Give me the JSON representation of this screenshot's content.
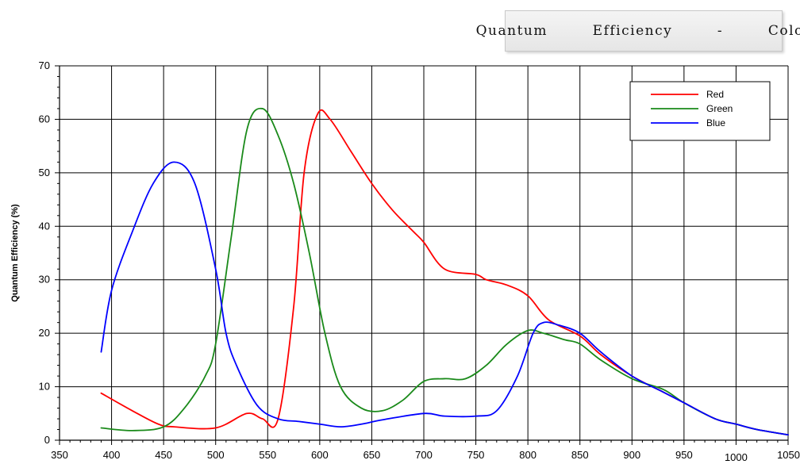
{
  "title_box": {
    "text": "Quantum   Efficiency   -   Color"
  },
  "chart_data": {
    "type": "line",
    "title": "Quantum   Efficiency   -   Color",
    "xlabel": "",
    "ylabel": "Quantum Efficiency (%)",
    "xlim": [
      350,
      1050
    ],
    "ylim": [
      0,
      70
    ],
    "x_ticks": [
      350,
      400,
      450,
      500,
      550,
      600,
      650,
      700,
      750,
      800,
      850,
      900,
      950,
      1000,
      1050
    ],
    "y_ticks": [
      0,
      10,
      20,
      30,
      40,
      50,
      60,
      70
    ],
    "grid": true,
    "legend_position": "top-right",
    "series": [
      {
        "name": "Red",
        "color": "#ff0000",
        "points": [
          [
            390,
            8.8
          ],
          [
            420,
            5.5
          ],
          [
            445,
            3.0
          ],
          [
            460,
            2.5
          ],
          [
            500,
            2.3
          ],
          [
            530,
            5.0
          ],
          [
            545,
            4.0
          ],
          [
            560,
            4.0
          ],
          [
            575,
            25.0
          ],
          [
            585,
            50.0
          ],
          [
            598,
            61.0
          ],
          [
            610,
            60.0
          ],
          [
            630,
            54.0
          ],
          [
            650,
            48.0
          ],
          [
            670,
            43.0
          ],
          [
            690,
            39.0
          ],
          [
            700,
            37.0
          ],
          [
            720,
            32.0
          ],
          [
            750,
            31.0
          ],
          [
            760,
            30.0
          ],
          [
            780,
            29.0
          ],
          [
            800,
            27.0
          ],
          [
            820,
            22.5
          ],
          [
            850,
            19.5
          ],
          [
            870,
            16.0
          ],
          [
            900,
            12.0
          ],
          [
            930,
            9.0
          ],
          [
            950,
            7.0
          ],
          [
            980,
            4.0
          ],
          [
            1000,
            3.0
          ],
          [
            1020,
            2.0
          ],
          [
            1050,
            1.0
          ]
        ]
      },
      {
        "name": "Green",
        "color": "#1a8a1a",
        "points": [
          [
            390,
            2.3
          ],
          [
            420,
            1.8
          ],
          [
            450,
            2.5
          ],
          [
            470,
            6.0
          ],
          [
            490,
            12.0
          ],
          [
            500,
            18.0
          ],
          [
            515,
            38.0
          ],
          [
            530,
            58.0
          ],
          [
            545,
            62.0
          ],
          [
            560,
            57.0
          ],
          [
            575,
            48.0
          ],
          [
            590,
            35.0
          ],
          [
            605,
            20.0
          ],
          [
            620,
            10.0
          ],
          [
            640,
            6.0
          ],
          [
            660,
            5.5
          ],
          [
            680,
            7.5
          ],
          [
            700,
            11.0
          ],
          [
            720,
            11.5
          ],
          [
            740,
            11.5
          ],
          [
            760,
            14.0
          ],
          [
            780,
            18.0
          ],
          [
            800,
            20.5
          ],
          [
            815,
            20.0
          ],
          [
            835,
            18.8
          ],
          [
            850,
            18.0
          ],
          [
            870,
            15.0
          ],
          [
            900,
            11.5
          ],
          [
            930,
            9.5
          ],
          [
            950,
            7.0
          ],
          [
            980,
            4.0
          ],
          [
            1000,
            3.0
          ],
          [
            1020,
            2.0
          ],
          [
            1050,
            1.0
          ]
        ]
      },
      {
        "name": "Blue",
        "color": "#0000ff",
        "points": [
          [
            390,
            16.5
          ],
          [
            400,
            28.0
          ],
          [
            420,
            39.0
          ],
          [
            440,
            48.0
          ],
          [
            460,
            52.0
          ],
          [
            480,
            48.0
          ],
          [
            500,
            32.0
          ],
          [
            510,
            20.0
          ],
          [
            520,
            14.0
          ],
          [
            540,
            6.5
          ],
          [
            560,
            4.0
          ],
          [
            580,
            3.5
          ],
          [
            600,
            3.0
          ],
          [
            620,
            2.5
          ],
          [
            640,
            3.0
          ],
          [
            660,
            3.8
          ],
          [
            700,
            5.0
          ],
          [
            720,
            4.5
          ],
          [
            750,
            4.5
          ],
          [
            770,
            5.5
          ],
          [
            790,
            12.0
          ],
          [
            805,
            20.0
          ],
          [
            815,
            22.0
          ],
          [
            830,
            21.5
          ],
          [
            850,
            20.0
          ],
          [
            870,
            16.5
          ],
          [
            900,
            12.0
          ],
          [
            930,
            9.0
          ],
          [
            950,
            7.0
          ],
          [
            980,
            4.0
          ],
          [
            1000,
            3.0
          ],
          [
            1020,
            2.0
          ],
          [
            1050,
            1.0
          ]
        ]
      }
    ]
  }
}
